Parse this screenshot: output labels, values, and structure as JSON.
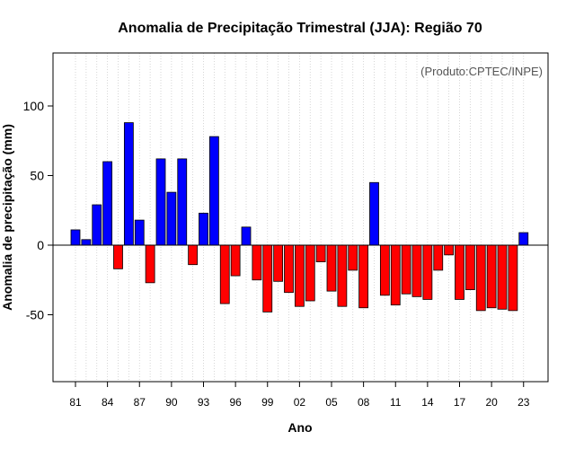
{
  "chart_data": {
    "type": "bar",
    "title": "Anomalia de Precipitação Trimestral (JJA): Região 70",
    "xlabel": "Ano",
    "ylabel": "Anomalia de precipitação (mm)",
    "annotation": "(Produto:CPTEC/INPE)",
    "ylim": [
      -100,
      138
    ],
    "yticks": [
      -50,
      0,
      50,
      100
    ],
    "xtick_labels": [
      "81",
      "84",
      "87",
      "90",
      "93",
      "96",
      "99",
      "02",
      "05",
      "08",
      "11",
      "14",
      "17",
      "20",
      "23"
    ],
    "grid": true,
    "positive_color": "#0000ff",
    "negative_color": "#ff0000",
    "categories": [
      "1981",
      "1982",
      "1983",
      "1984",
      "1985",
      "1986",
      "1987",
      "1988",
      "1989",
      "1990",
      "1991",
      "1992",
      "1993",
      "1994",
      "1995",
      "1996",
      "1997",
      "1998",
      "1999",
      "2000",
      "2001",
      "2002",
      "2003",
      "2004",
      "2005",
      "2006",
      "2007",
      "2008",
      "2009",
      "2010",
      "2011",
      "2012",
      "2013",
      "2014",
      "2015",
      "2016",
      "2017",
      "2018",
      "2019",
      "2020",
      "2021",
      "2022",
      "2023"
    ],
    "values": [
      11,
      4,
      29,
      60,
      -17,
      88,
      18,
      -27,
      62,
      38,
      62,
      -14,
      23,
      78,
      -42,
      -22,
      13,
      -25,
      -48,
      -26,
      -34,
      -44,
      -40,
      -12,
      -33,
      -44,
      -18,
      -45,
      45,
      -36,
      -43,
      -35,
      -37,
      -39,
      -18,
      -7,
      -39,
      -32,
      -47,
      -45,
      -46,
      -47,
      9
    ]
  }
}
